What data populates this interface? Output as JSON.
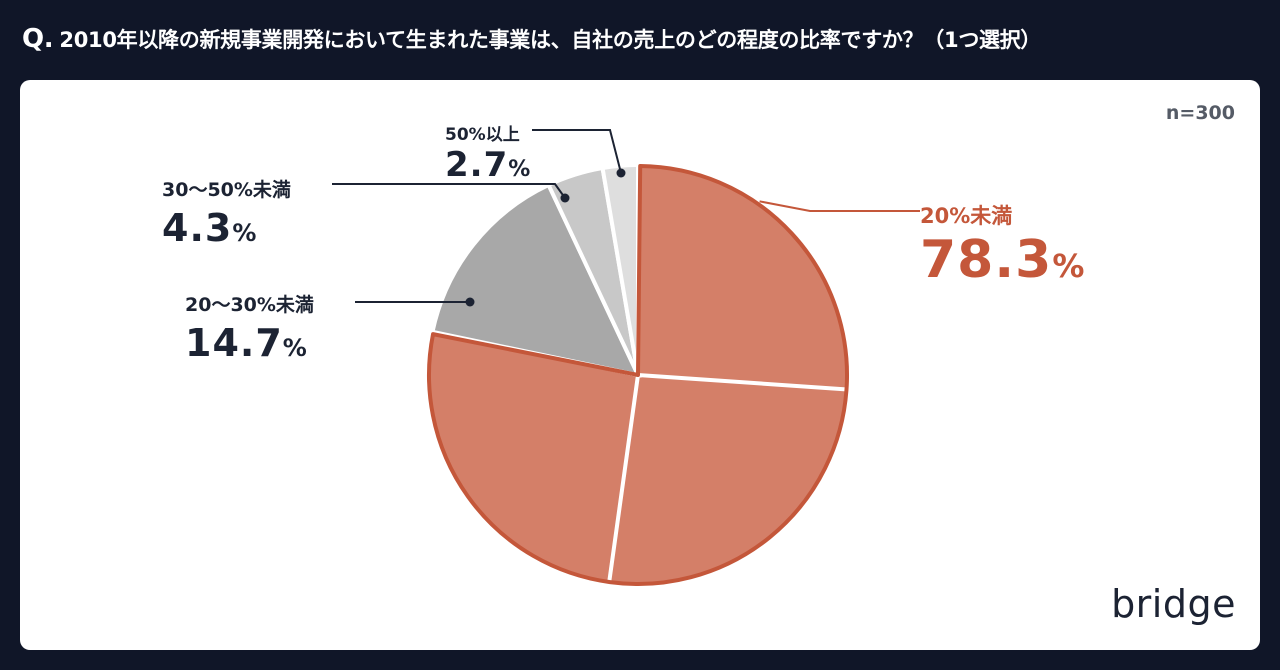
{
  "question": {
    "marker": "Q.",
    "text": "2010年以降の新規事業開発において生まれた事業は、自社の売上のどの程度の比率ですか？（1つ選択）"
  },
  "sample_size": "n=300",
  "brand": "bridge",
  "colors": {
    "background": "#101628",
    "highlight": "#d47f68",
    "highlight_border": "#c4573a",
    "gray_dark": "#a8a8a8",
    "gray_mid": "#c8c8c8",
    "gray_light": "#dedede"
  },
  "chart_data": {
    "type": "pie",
    "start": "12 o'clock",
    "direction": "clockwise",
    "slices": [
      {
        "label": "20%未満",
        "value": 78.3,
        "value_text": "78.3",
        "unit": "%",
        "color": "#d47f68",
        "highlight": true
      },
      {
        "label": "20〜30%未満",
        "value": 14.7,
        "value_text": "14.7",
        "unit": "%",
        "color": "#a8a8a8",
        "highlight": false
      },
      {
        "label": "30〜50%未満",
        "value": 4.3,
        "value_text": "4.3",
        "unit": "%",
        "color": "#c8c8c8",
        "highlight": false
      },
      {
        "label": "50%以上",
        "value": 2.7,
        "value_text": "2.7",
        "unit": "%",
        "color": "#dedede",
        "highlight": false
      }
    ]
  }
}
